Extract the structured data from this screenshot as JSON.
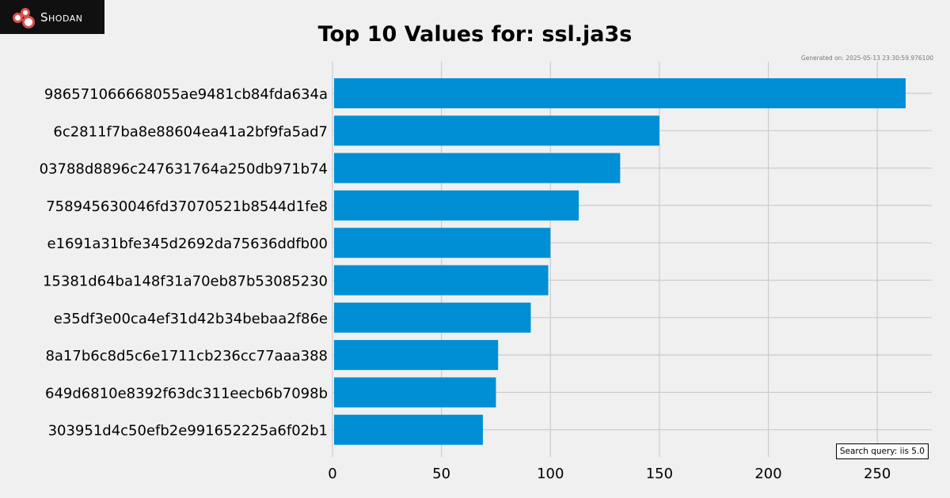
{
  "logo": {
    "text": "Shodan"
  },
  "generated": "Generated on: 2025-05-13 23:30:59.976100",
  "search_query": "Search query: iis 5.0",
  "chart_data": {
    "type": "bar",
    "orientation": "horizontal",
    "title": "Top 10 Values for: ssl.ja3s",
    "xlabel": "",
    "ylabel": "",
    "xlim": [
      0,
      275
    ],
    "xticks": [
      0,
      50,
      100,
      150,
      200,
      250
    ],
    "grid": true,
    "bar_color": "#008fd5",
    "categories": [
      "986571066668055ae9481cb84fda634a",
      "6c2811f7ba8e88604ea41a2bf9fa5ad7",
      "03788d8896c247631764a250db971b74",
      "758945630046fd37070521b8544d1fe8",
      "e1691a31bfe345d2692da75636ddfb00",
      "15381d64ba148f31a70eb87b53085230",
      "e35df3e00ca4ef31d42b34bebaa2f86e",
      "8a17b6c8d5c6e1711cb236cc77aaa388",
      "649d6810e8392f63dc311eecb6b7098b",
      "303951d4c50efb2e991652225a6f02b1"
    ],
    "values": [
      263,
      150,
      132,
      113,
      100,
      99,
      91,
      76,
      75,
      69
    ]
  }
}
